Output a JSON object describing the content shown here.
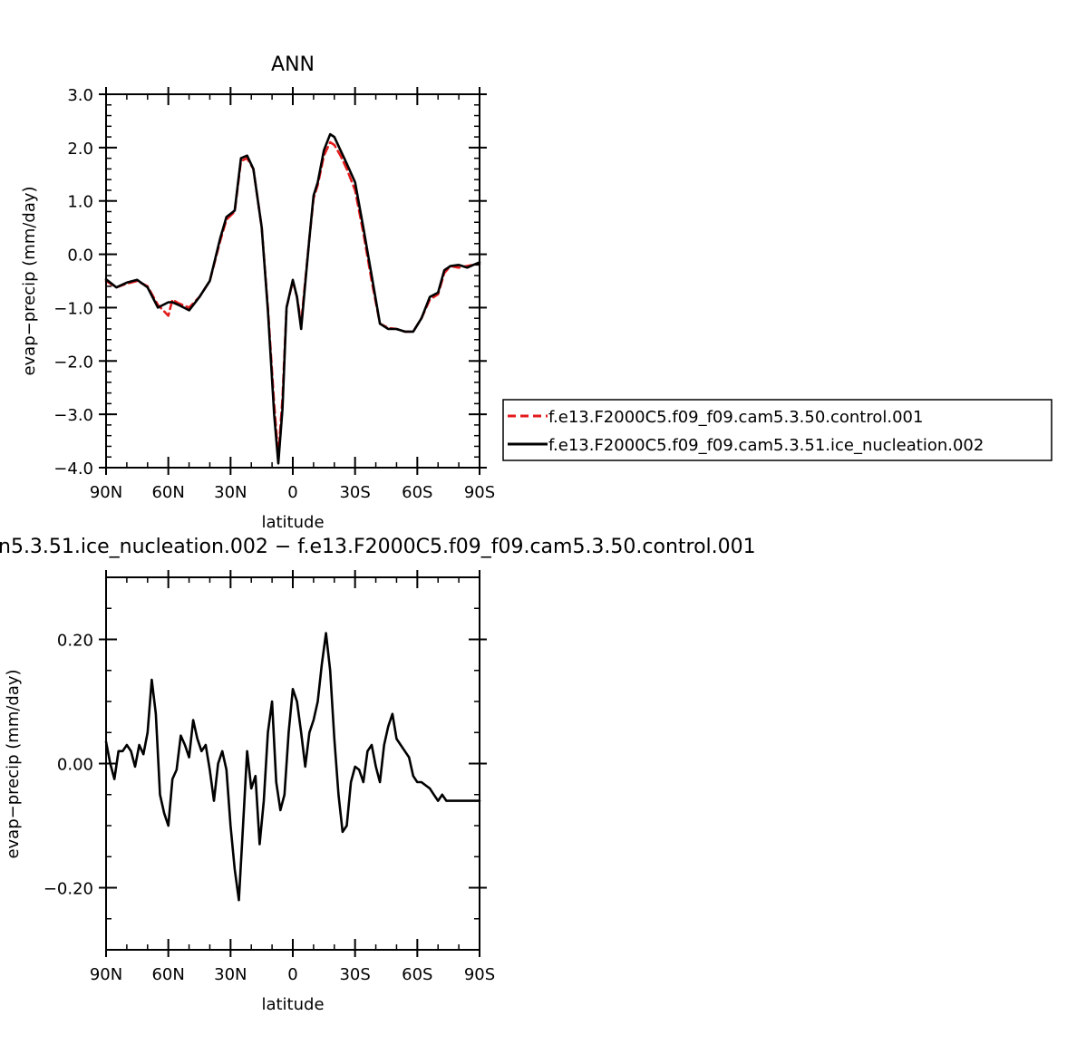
{
  "chart_data": [
    {
      "type": "line",
      "title": "ANN",
      "xlabel": "latitude",
      "ylabel": "evap−precip (mm/day)",
      "xlim": [
        90,
        -90
      ],
      "ylim": [
        -4.0,
        3.0
      ],
      "x_ticks": [
        90,
        60,
        30,
        0,
        -30,
        -60,
        -90
      ],
      "x_tick_labels": [
        "90N",
        "60N",
        "30N",
        "0",
        "30S",
        "60S",
        "90S"
      ],
      "y_ticks": [
        3.0,
        2.0,
        1.0,
        0.0,
        -1.0,
        -2.0,
        -3.0,
        -4.0
      ],
      "y_tick_labels": [
        "3.0",
        "2.0",
        "1.0",
        "0.0",
        "−1.0",
        "−2.0",
        "−3.0",
        "−4.0"
      ],
      "legend_position": "right",
      "series": [
        {
          "name": "f.e13.F2000C5.f09_f09.cam5.3.50.control.001",
          "color": "#e41a1c",
          "dash": "dashed",
          "x": [
            90,
            85,
            80,
            75,
            70,
            65,
            60,
            58,
            55,
            50,
            45,
            40,
            35,
            32,
            28,
            25,
            22,
            19,
            15,
            12,
            9,
            7,
            5,
            3,
            0,
            -2,
            -4,
            -6,
            -8,
            -10,
            -12,
            -15,
            -18,
            -20,
            -23,
            -26,
            -30,
            -34,
            -38,
            -42,
            -46,
            -50,
            -54,
            -58,
            -62,
            -66,
            -70,
            -73,
            -76,
            -80,
            -84,
            -87,
            -90
          ],
          "y": [
            -0.5,
            -0.62,
            -0.55,
            -0.5,
            -0.6,
            -0.95,
            -1.15,
            -0.85,
            -0.92,
            -1.0,
            -0.8,
            -0.5,
            0.25,
            0.65,
            0.8,
            1.75,
            1.8,
            1.6,
            0.5,
            -1.0,
            -2.8,
            -3.8,
            -2.7,
            -1.0,
            -0.5,
            -0.8,
            -1.3,
            -0.5,
            0.3,
            1.05,
            1.3,
            1.85,
            2.1,
            2.05,
            1.85,
            1.6,
            1.2,
            0.4,
            -0.5,
            -1.3,
            -1.38,
            -1.4,
            -1.45,
            -1.45,
            -1.2,
            -0.85,
            -0.75,
            -0.35,
            -0.22,
            -0.25,
            -0.22,
            -0.2,
            -0.18
          ]
        },
        {
          "name": "f.e13.F2000C5.f09_f09.cam5.3.51.ice_nucleation.002",
          "color": "#000000",
          "dash": "solid",
          "x": [
            90,
            85,
            80,
            75,
            70,
            65,
            60,
            58,
            55,
            50,
            45,
            40,
            35,
            32,
            28,
            25,
            22,
            19,
            15,
            12,
            9,
            7,
            5,
            3,
            0,
            -2,
            -4,
            -6,
            -8,
            -10,
            -12,
            -15,
            -18,
            -20,
            -23,
            -26,
            -30,
            -34,
            -38,
            -42,
            -46,
            -50,
            -54,
            -58,
            -62,
            -66,
            -70,
            -73,
            -76,
            -80,
            -84,
            -87,
            -90
          ],
          "y": [
            -0.47,
            -0.62,
            -0.53,
            -0.48,
            -0.62,
            -1.0,
            -0.9,
            -0.9,
            -0.95,
            -1.05,
            -0.8,
            -0.5,
            0.3,
            0.7,
            0.82,
            1.8,
            1.85,
            1.6,
            0.5,
            -1.05,
            -3.0,
            -3.92,
            -2.9,
            -1.0,
            -0.48,
            -0.8,
            -1.4,
            -0.55,
            0.3,
            1.1,
            1.35,
            1.95,
            2.25,
            2.2,
            1.95,
            1.7,
            1.35,
            0.5,
            -0.4,
            -1.3,
            -1.4,
            -1.4,
            -1.45,
            -1.45,
            -1.2,
            -0.8,
            -0.72,
            -0.3,
            -0.22,
            -0.2,
            -0.25,
            -0.2,
            -0.15
          ]
        }
      ],
      "legend": [
        "f.e13.F2000C5.f09_f09.cam5.3.50.control.001",
        "f.e13.F2000C5.f09_f09.cam5.3.51.ice_nucleation.002"
      ]
    },
    {
      "type": "line",
      "title": "n5.3.51.ice_nucleation.002 − f.e13.F2000C5.f09_f09.cam5.3.50.control.001",
      "xlabel": "latitude",
      "ylabel": "evap−precip (mm/day)",
      "xlim": [
        90,
        -90
      ],
      "ylim": [
        -0.3,
        0.3
      ],
      "x_ticks": [
        90,
        60,
        30,
        0,
        -30,
        -60,
        -90
      ],
      "x_tick_labels": [
        "90N",
        "60N",
        "30N",
        "0",
        "30S",
        "60S",
        "90S"
      ],
      "y_ticks": [
        0.2,
        0.0,
        -0.2
      ],
      "y_tick_labels": [
        "0.20",
        "0.00",
        "−0.20"
      ],
      "series": [
        {
          "color": "#000000",
          "dash": "solid",
          "x": [
            90,
            88,
            86,
            84,
            82,
            80,
            78,
            76,
            74,
            72,
            70,
            68,
            66,
            64,
            62,
            60,
            58,
            56,
            54,
            52,
            50,
            48,
            46,
            44,
            42,
            40,
            38,
            36,
            34,
            32,
            30,
            28,
            26,
            24,
            22,
            20,
            18,
            16,
            14,
            12,
            10,
            8,
            6,
            4,
            2,
            0,
            -2,
            -4,
            -6,
            -8,
            -10,
            -12,
            -14,
            -16,
            -18,
            -20,
            -22,
            -24,
            -26,
            -28,
            -30,
            -32,
            -34,
            -36,
            -38,
            -40,
            -42,
            -44,
            -46,
            -48,
            -50,
            -52,
            -54,
            -56,
            -58,
            -60,
            -62,
            -64,
            -66,
            -68,
            -70,
            -72,
            -74,
            -76,
            -78,
            -80,
            -82,
            -84,
            -86,
            -88,
            -90
          ],
          "y": [
            0.035,
            0.0,
            -0.025,
            0.02,
            0.02,
            0.03,
            0.02,
            -0.005,
            0.03,
            0.015,
            0.05,
            0.135,
            0.08,
            -0.05,
            -0.08,
            -0.1,
            -0.025,
            -0.01,
            0.045,
            0.03,
            0.01,
            0.07,
            0.04,
            0.02,
            0.03,
            -0.01,
            -0.06,
            0.0,
            0.02,
            -0.01,
            -0.1,
            -0.17,
            -0.22,
            -0.1,
            0.02,
            -0.04,
            -0.02,
            -0.13,
            -0.06,
            0.05,
            0.1,
            -0.03,
            -0.075,
            -0.05,
            0.05,
            0.12,
            0.1,
            0.05,
            -0.005,
            0.05,
            0.07,
            0.1,
            0.16,
            0.21,
            0.15,
            0.04,
            -0.05,
            -0.11,
            -0.1,
            -0.03,
            -0.005,
            -0.01,
            -0.03,
            0.02,
            0.03,
            -0.005,
            -0.03,
            0.03,
            0.06,
            0.08,
            0.04,
            0.03,
            0.02,
            0.01,
            -0.02,
            -0.03,
            -0.03,
            -0.035,
            -0.04,
            -0.05,
            -0.06,
            -0.05,
            -0.06,
            -0.06,
            -0.06,
            -0.06,
            -0.06,
            -0.06,
            -0.06,
            -0.06,
            -0.06
          ]
        }
      ]
    }
  ]
}
